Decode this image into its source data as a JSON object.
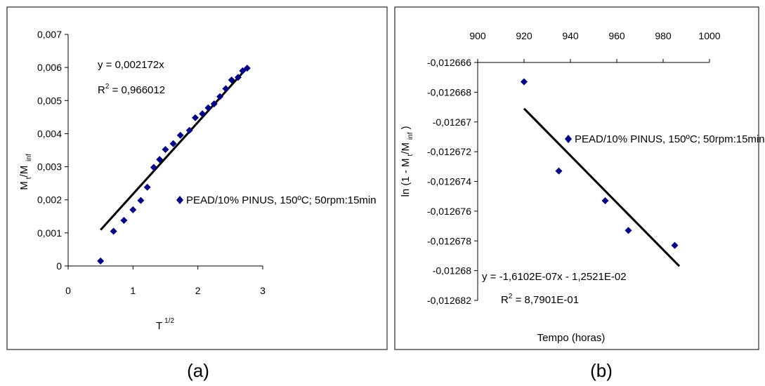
{
  "captions": {
    "a": "(a)",
    "b": "(b)"
  },
  "chart_data": [
    {
      "type": "scatter",
      "xlabel": "T",
      "xlabel_sup": "1/2",
      "ylabel": "M",
      "ylabel_sub1": "t",
      "ylabel_mid": "/M",
      "ylabel_sub2": "inf",
      "xlim": [
        0,
        3
      ],
      "ylim": [
        0,
        0.007
      ],
      "x_ticks": [
        0,
        1,
        2,
        3
      ],
      "x_tick_labels": [
        "0",
        "1",
        "2",
        "3"
      ],
      "y_ticks": [
        0,
        0.001,
        0.002,
        0.003,
        0.004,
        0.005,
        0.006,
        0.007
      ],
      "y_tick_labels": [
        "0",
        "0,001",
        "0,002",
        "0,003",
        "0,004",
        "0,005",
        "0,006",
        "0,007"
      ],
      "grid": false,
      "legend_placement": "center-right",
      "series": [
        {
          "name": "PEAD/10% PINUS, 150ºC; 50rpm:15min",
          "marker": "diamond",
          "color": "#000080",
          "points": [
            [
              0.5,
              0.00015
            ],
            [
              0.7,
              0.00105
            ],
            [
              0.86,
              0.00138
            ],
            [
              1.0,
              0.0017
            ],
            [
              1.12,
              0.00198
            ],
            [
              1.22,
              0.00238
            ],
            [
              1.32,
              0.00298
            ],
            [
              1.41,
              0.00322
            ],
            [
              1.5,
              0.00352
            ],
            [
              1.62,
              0.0037
            ],
            [
              1.73,
              0.00395
            ],
            [
              1.87,
              0.0041
            ],
            [
              1.96,
              0.00448
            ],
            [
              2.07,
              0.0046
            ],
            [
              2.16,
              0.00478
            ],
            [
              2.25,
              0.0049
            ],
            [
              2.34,
              0.00512
            ],
            [
              2.43,
              0.00536
            ],
            [
              2.52,
              0.00562
            ],
            [
              2.62,
              0.0057
            ],
            [
              2.69,
              0.0059
            ],
            [
              2.76,
              0.00598
            ]
          ]
        }
      ],
      "trendline": {
        "x": [
          0.5,
          2.75
        ],
        "y": [
          0.00109,
          0.00597
        ],
        "color": "#000000"
      },
      "equation": "y = 0,002172x",
      "r2_label": "R",
      "r2_sup": "2",
      "r2_value": " = 0,966012"
    },
    {
      "type": "scatter",
      "xlabel": "Tempo (horas)",
      "ylabel_prefix": "ln (1 - M",
      "ylabel_sub1": "t",
      "ylabel_mid": "/M",
      "ylabel_sub2": "inf",
      "ylabel_suffix": ")",
      "xlim": [
        900,
        1000
      ],
      "ylim": [
        -0.012682,
        -0.012666
      ],
      "x_axis_position": "top",
      "x_ticks": [
        900,
        920,
        940,
        960,
        980,
        1000
      ],
      "x_tick_labels": [
        "900",
        "920",
        "940",
        "960",
        "980",
        "1000"
      ],
      "y_ticks": [
        -0.012666,
        -0.012668,
        -0.01267,
        -0.012672,
        -0.012674,
        -0.012676,
        -0.012678,
        -0.01268,
        -0.012682
      ],
      "y_tick_labels": [
        "-0,012666",
        "-0,012668",
        "-0,01267",
        "-0,012672",
        "-0,012674",
        "-0,012676",
        "-0,012678",
        "-0,01268",
        "-0,012682"
      ],
      "grid": false,
      "legend_placement": "right",
      "series": [
        {
          "name": "PEAD/10% PINUS, 150ºC; 50rpm:15min",
          "marker": "diamond",
          "color": "#000080",
          "points": [
            [
              920,
              -0.0126673
            ],
            [
              935,
              -0.0126733
            ],
            [
              955,
              -0.0126753
            ],
            [
              965,
              -0.0126773
            ],
            [
              985,
              -0.0126783
            ]
          ]
        }
      ],
      "trendline": {
        "x": [
          920,
          987
        ],
        "y": [
          -0.0126691,
          -0.0126797
        ],
        "color": "#000000"
      },
      "equation": "y = -1,6102E-07x - 1,2521E-02",
      "r2_label": "R",
      "r2_sup": "2",
      "r2_value": " = 8,7901E-01"
    }
  ]
}
